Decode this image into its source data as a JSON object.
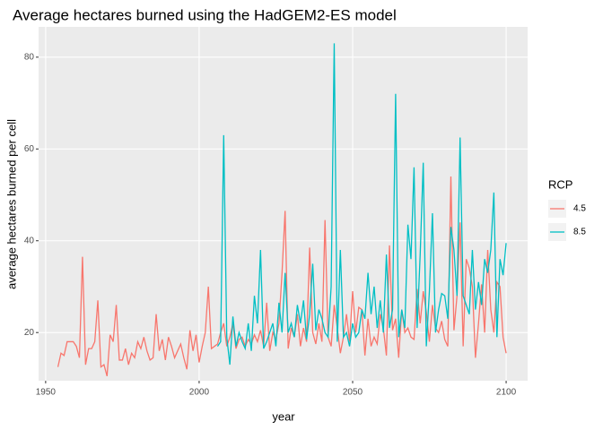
{
  "chart_data": {
    "type": "line",
    "title": "Average hectares burned using the HadGEM2-ES model",
    "x_label": "year",
    "y_label": "average hectares burned per cell",
    "legend_title": "RCP",
    "legend": "right",
    "grid": true,
    "xlim": [
      1947.7,
      2107
    ],
    "ylim": [
      9.5,
      86.6
    ],
    "xticks": [
      1950,
      2000,
      2050,
      2100
    ],
    "yticks": [
      20,
      40,
      60,
      80
    ],
    "x": [
      1954,
      1955,
      1956,
      1957,
      1958,
      1959,
      1960,
      1961,
      1962,
      1963,
      1964,
      1965,
      1966,
      1967,
      1968,
      1969,
      1970,
      1971,
      1972,
      1973,
      1974,
      1975,
      1976,
      1977,
      1978,
      1979,
      1980,
      1981,
      1982,
      1983,
      1984,
      1985,
      1986,
      1987,
      1988,
      1989,
      1990,
      1991,
      1992,
      1993,
      1994,
      1995,
      1996,
      1997,
      1998,
      1999,
      2000,
      2001,
      2002,
      2003,
      2004,
      2005,
      2006,
      2007,
      2008,
      2009,
      2010,
      2011,
      2012,
      2013,
      2014,
      2015,
      2016,
      2017,
      2018,
      2019,
      2020,
      2021,
      2022,
      2023,
      2024,
      2025,
      2026,
      2027,
      2028,
      2029,
      2030,
      2031,
      2032,
      2033,
      2034,
      2035,
      2036,
      2037,
      2038,
      2039,
      2040,
      2041,
      2042,
      2043,
      2044,
      2045,
      2046,
      2047,
      2048,
      2049,
      2050,
      2051,
      2052,
      2053,
      2054,
      2055,
      2056,
      2057,
      2058,
      2059,
      2060,
      2061,
      2062,
      2063,
      2064,
      2065,
      2066,
      2067,
      2068,
      2069,
      2070,
      2071,
      2072,
      2073,
      2074,
      2075,
      2076,
      2077,
      2078,
      2079,
      2080,
      2081,
      2082,
      2083,
      2084,
      2085,
      2086,
      2087,
      2088,
      2089,
      2090,
      2091,
      2092,
      2093,
      2094,
      2095,
      2096,
      2097,
      2098,
      2099,
      2100
    ],
    "series": [
      {
        "name": "4.5",
        "color": "#f8766d",
        "values": [
          12.5,
          15.5,
          15,
          18,
          18,
          18,
          17,
          14.5,
          36.5,
          13,
          16.5,
          16.5,
          18,
          27,
          12.5,
          13,
          10.5,
          19.5,
          18,
          26,
          14,
          14,
          16.5,
          13,
          15.5,
          14.5,
          18,
          16.5,
          19,
          16,
          14,
          14.5,
          24,
          16,
          18.5,
          14,
          19,
          17,
          14.5,
          16,
          17.5,
          14.5,
          12,
          20.5,
          16,
          19.5,
          13.5,
          17,
          20,
          30,
          16.5,
          17,
          17.5,
          20,
          22,
          17,
          19,
          22,
          16.5,
          18.5,
          19,
          17,
          18.5,
          17.5,
          19.5,
          18,
          20.5,
          17,
          26.5,
          16,
          20,
          18.5,
          22,
          33,
          46.5,
          16.5,
          21,
          19,
          24,
          17,
          21,
          18,
          38.5,
          20,
          17.5,
          22,
          18,
          44.5,
          19,
          17,
          26,
          21,
          15.5,
          19,
          24,
          18,
          29,
          20,
          25.5,
          25,
          15,
          23,
          17,
          19,
          17.5,
          24,
          21,
          15,
          39,
          20.5,
          23,
          14.5,
          25,
          20,
          21,
          19,
          18.5,
          29.5,
          22,
          29,
          24.5,
          18,
          26,
          21,
          20,
          22.5,
          18.5,
          17,
          54,
          20.5,
          28,
          44,
          17,
          36,
          34,
          30,
          14.5,
          22,
          30.5,
          20,
          38,
          25,
          20,
          31,
          30,
          19,
          15.5
        ]
      },
      {
        "name": "8.5",
        "color": "#00bfc4",
        "values": [
          null,
          null,
          null,
          null,
          null,
          null,
          null,
          null,
          null,
          null,
          null,
          null,
          null,
          null,
          null,
          null,
          null,
          null,
          null,
          null,
          null,
          null,
          null,
          null,
          null,
          null,
          null,
          null,
          null,
          null,
          null,
          null,
          null,
          null,
          null,
          null,
          null,
          null,
          null,
          null,
          null,
          null,
          null,
          null,
          null,
          null,
          null,
          null,
          null,
          null,
          null,
          null,
          17,
          18,
          63,
          19,
          13,
          23.5,
          17,
          20,
          18,
          16.5,
          22,
          16,
          28,
          22,
          38,
          16.5,
          18,
          20,
          22,
          17,
          26.5,
          20,
          33,
          20,
          22,
          19,
          26,
          22,
          27,
          18.5,
          24,
          35,
          20.5,
          25,
          23,
          20,
          19,
          30,
          83,
          18,
          38,
          19,
          20,
          17,
          22,
          19,
          20,
          25,
          23,
          33,
          24,
          30,
          21,
          27,
          20,
          37,
          21,
          25,
          72,
          19,
          25,
          21,
          43.5,
          36,
          56,
          21,
          37,
          57,
          17,
          29,
          46,
          20,
          25,
          28.5,
          28,
          23,
          43,
          38,
          28,
          62.5,
          28,
          26,
          24,
          38,
          25,
          31,
          26,
          36,
          33,
          38,
          50.5,
          19,
          36,
          32.5,
          39.5
        ]
      }
    ]
  }
}
